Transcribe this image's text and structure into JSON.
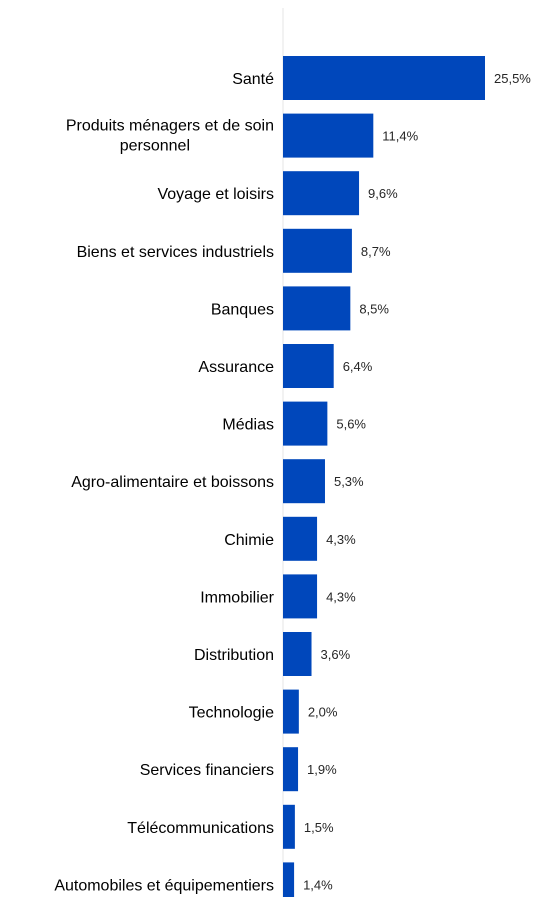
{
  "chart_data": {
    "type": "bar",
    "orientation": "horizontal",
    "categories": [
      "Santé",
      "Produits ménagers et de soin personnel",
      "Voyage et loisirs",
      "Biens et services industriels",
      "Banques",
      "Assurance",
      "Médias",
      "Agro-alimentaire et boissons",
      "Chimie",
      "Immobilier",
      "Distribution",
      "Technologie",
      "Services financiers",
      "Télécommunications",
      "Automobiles et équipementiers"
    ],
    "values": [
      25.5,
      11.4,
      9.6,
      8.7,
      8.5,
      6.4,
      5.6,
      5.3,
      4.3,
      4.3,
      3.6,
      2.0,
      1.9,
      1.5,
      1.4
    ],
    "value_labels": [
      "25,5%",
      "11,4%",
      "9,6%",
      "8,7%",
      "8,5%",
      "6,4%",
      "5,6%",
      "5,3%",
      "4,3%",
      "4,3%",
      "3,6%",
      "2,0%",
      "1,9%",
      "1,5%",
      "1,4%"
    ],
    "title": "",
    "xlabel": "",
    "ylabel": "",
    "xlim": [
      0,
      25.5
    ],
    "grid": false,
    "legend": "none",
    "colors": {
      "bar": "#0047BB",
      "axis": "#e6e6e6",
      "label": "#000000",
      "value": "#262626"
    }
  }
}
